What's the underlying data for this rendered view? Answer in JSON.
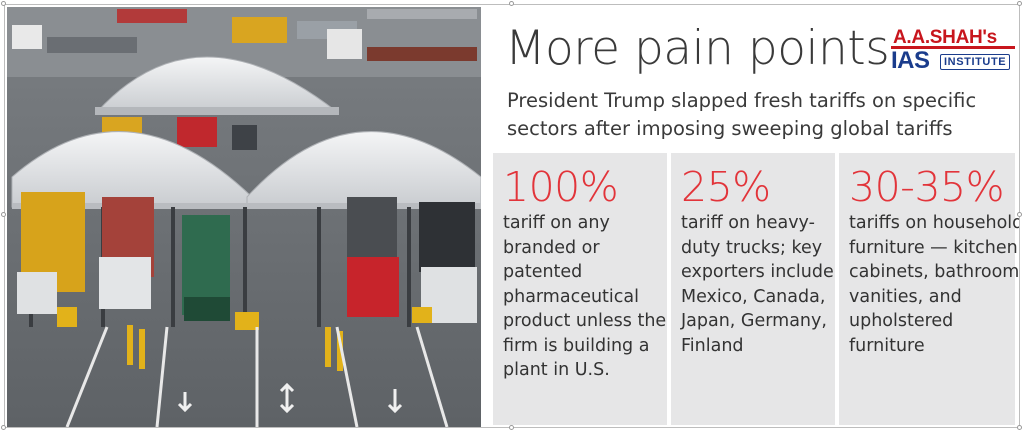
{
  "headline": "More pain points",
  "subhead": "President Trump slapped fresh tariffs on specific sectors after imposing sweeping global tariffs",
  "logo": {
    "name": "A.A.SHAH's",
    "ias": "IAS",
    "institute": "INSTITUTE",
    "colors": {
      "red": "#c8161d",
      "blue": "#1a3c8c"
    }
  },
  "photo": {
    "subject": "trucks at border inspection lanes under white canopies"
  },
  "tariffs": [
    {
      "rate": "100%",
      "description": "tariff on any branded or patented pharmaceutical product unless the firm is building a plant in U.S."
    },
    {
      "rate": "25%",
      "description": "tariff on heavy-duty trucks; key exporters include Mexico, Canada, Japan, Germany, Finland"
    },
    {
      "rate": "30-35%",
      "description": "tariffs on household furniture — kitchen cabinets, bathroom vanities, and upholstered furniture"
    }
  ],
  "accent_color": "#e2343a"
}
